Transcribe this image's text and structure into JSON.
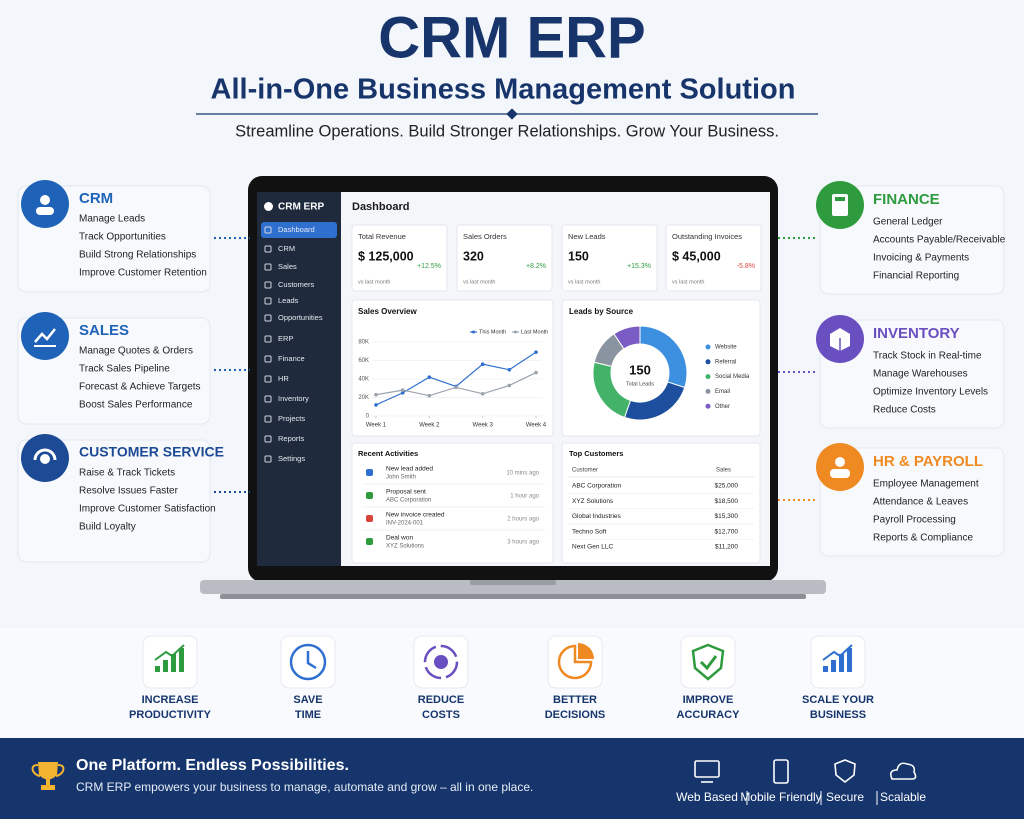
{
  "header": {
    "title": "CRM ERP",
    "subtitle": "All-in-One Business Management Solution",
    "tagline": "Streamline Operations. Build Stronger Relationships. Grow Your Business."
  },
  "modules_left": [
    {
      "title": "CRM",
      "items": [
        "Manage Leads",
        "Track Opportunities",
        "Build Strong Relationships",
        "Improve Customer Retention"
      ]
    },
    {
      "title": "SALES",
      "items": [
        "Manage Quotes & Orders",
        "Track Sales Pipeline",
        "Forecast & Achieve Targets",
        "Boost Sales Performance"
      ]
    },
    {
      "title": "CUSTOMER SERVICE",
      "items": [
        "Raise & Track Tickets",
        "Resolve Issues Faster",
        "Improve Customer Satisfaction",
        "Build Loyalty"
      ]
    }
  ],
  "modules_right": [
    {
      "title": "FINANCE",
      "items": [
        "General Ledger",
        "Accounts Payable/Receivable",
        "Invoicing & Payments",
        "Financial Reporting"
      ]
    },
    {
      "title": "INVENTORY",
      "items": [
        "Track Stock in Real-time",
        "Manage Warehouses",
        "Optimize Inventory Levels",
        "Reduce Costs"
      ]
    },
    {
      "title": "HR & PAYROLL",
      "items": [
        "Employee Management",
        "Attendance & Leaves",
        "Payroll Processing",
        "Reports & Compliance"
      ]
    }
  ],
  "app": {
    "brand": "CRM ERP",
    "nav": [
      "Dashboard",
      "CRM",
      "Sales",
      "Customers",
      "Leads",
      "Opportunities",
      "ERP",
      "Finance",
      "HR",
      "Inventory",
      "Projects",
      "Reports",
      "Settings"
    ],
    "page_title": "Dashboard",
    "kpis": [
      {
        "label": "Total Revenue",
        "value": "$ 125,000",
        "change": "+12.5%",
        "note": "vs last month"
      },
      {
        "label": "Sales Orders",
        "value": "320",
        "change": "+8.2%",
        "note": "vs last month"
      },
      {
        "label": "New Leads",
        "value": "150",
        "change": "+15.3%",
        "note": "vs last month"
      },
      {
        "label": "Outstanding Invoices",
        "value": "$ 45,000",
        "change": "-5.8%",
        "note": "vs last month"
      }
    ],
    "sales_overview": {
      "type": "line",
      "title": "Sales Overview",
      "x": [
        1,
        1.5,
        2,
        2.5,
        3,
        3.5,
        4
      ],
      "xlim": [
        1,
        4
      ],
      "xticks": [
        {
          "value": 1,
          "label": "Week 1"
        },
        {
          "value": 2,
          "label": "Week 2"
        },
        {
          "value": 3,
          "label": "Week 3"
        },
        {
          "value": 4,
          "label": "Week 4"
        }
      ],
      "ylim": [
        0,
        80000
      ],
      "yticks": [
        0,
        {
          "value": 20000,
          "label": "20K"
        },
        {
          "value": 40000,
          "label": "40K"
        },
        {
          "value": 60000,
          "label": "60K"
        },
        {
          "value": 80000,
          "label": "80K"
        }
      ],
      "series": [
        {
          "name": "This Month",
          "color": "#2f6fcf",
          "values": [
            12000,
            25000,
            42000,
            32000,
            56000,
            50000,
            69000
          ]
        },
        {
          "name": "Last Month",
          "color": "#9aa3ad",
          "values": [
            23000,
            28000,
            22000,
            31000,
            24000,
            33000,
            47000
          ]
        }
      ]
    },
    "leads_by_source": {
      "type": "pie",
      "title": "Leads by Source",
      "total": 150,
      "total_label": "Total Leads",
      "categories": [
        "Website",
        "Referral",
        "Social Media",
        "Email",
        "Other"
      ],
      "values": [
        45,
        38,
        35,
        18,
        14
      ],
      "colors": [
        "#3d8fe0",
        "#1d4f9e",
        "#43b36a",
        "#8a94a0",
        "#7b5cc4"
      ]
    },
    "recent_activities": {
      "title": "Recent Activities",
      "items": [
        {
          "title": "New lead added",
          "sub": "John Smith",
          "time": "10 mins ago"
        },
        {
          "title": "Proposal sent",
          "sub": "ABC Corporation",
          "time": "1 hour ago"
        },
        {
          "title": "New invoice created",
          "sub": "INV-2024-001",
          "time": "2 hours ago"
        },
        {
          "title": "Deal won",
          "sub": "XYZ Solutions",
          "time": "3 hours ago"
        }
      ]
    },
    "top_customers": {
      "title": "Top Customers",
      "columns": [
        "Customer",
        "Sales"
      ],
      "rows": [
        [
          "ABC Corporation",
          "$25,000"
        ],
        [
          "XYZ Solutions",
          "$18,500"
        ],
        [
          "Global Industries",
          "$15,300"
        ],
        [
          "Techno Soft",
          "$12,700"
        ],
        [
          "Next Gen LLC",
          "$11,200"
        ]
      ]
    }
  },
  "benefits": [
    [
      "INCREASE",
      "PRODUCTIVITY"
    ],
    [
      "SAVE",
      "TIME"
    ],
    [
      "REDUCE",
      "COSTS"
    ],
    [
      "BETTER",
      "DECISIONS"
    ],
    [
      "IMPROVE",
      "ACCURACY"
    ],
    [
      "SCALE YOUR",
      "BUSINESS"
    ]
  ],
  "footer": {
    "headline": "One Platform. Endless Possibilities.",
    "text": "CRM ERP empowers your business to manage, automate and grow – all in one place.",
    "features": [
      "Web Based",
      "Mobile Friendly",
      "Secure",
      "Scalable"
    ]
  }
}
